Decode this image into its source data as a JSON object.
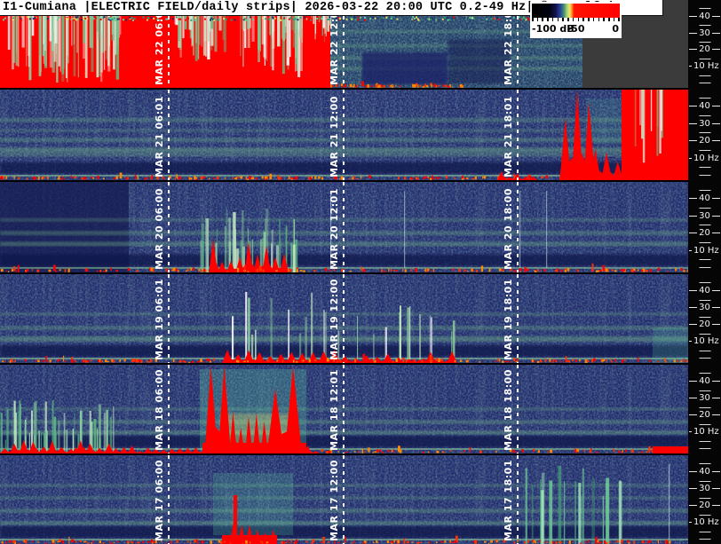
{
  "header": {
    "title": "I1-Cumiana |ELECTRIC FIELD/daily strips| 2026-03-22 20:00 UTC 0.2-49 Hz| ©www.vlf.it"
  },
  "colorbar": {
    "labels": [
      "-100 dB",
      "-50",
      "0"
    ],
    "unit": "dB",
    "min_db": -100,
    "max_db": 0
  },
  "freq_axis": {
    "labels": [
      "40",
      "30",
      "20",
      "10 Hz"
    ],
    "unit": "Hz",
    "range_hz": [
      0.2,
      49
    ]
  },
  "strips": [
    {
      "date": "MAR 22",
      "markers": [
        "MAR 22  06:00",
        "MAR 22  12:01",
        "MAR 22  18:00"
      ]
    },
    {
      "date": "MAR 21",
      "markers": [
        "MAR 21  06:01",
        "MAR 21  12:00",
        "MAR 21  18:01"
      ]
    },
    {
      "date": "MAR 20",
      "markers": [
        "MAR 20  06:00",
        "MAR 20  12:01",
        "MAR 20  18:00"
      ]
    },
    {
      "date": "MAR 19",
      "markers": [
        "MAR 19  06:01",
        "MAR 19  12:00",
        "MAR 19  18:01"
      ]
    },
    {
      "date": "MAR 18",
      "markers": [
        "MAR 18  06:00",
        "MAR 18  12:01",
        "MAR 18  18:00"
      ]
    },
    {
      "date": "MAR 17",
      "markers": [
        "MAR 17  06:00",
        "MAR 17  12:00",
        "MAR 17  18:01"
      ]
    }
  ],
  "palette": {
    "background": "#000000",
    "strip_base": "#232a6e",
    "speckle_green": "#59d999",
    "signal_red": "#ff0000",
    "no_data_gray": "#3b3b3b",
    "axis_bg": "#050505",
    "text_white": "#ffffff",
    "titlebar_bg": "#ffffff",
    "title_text": "#000000"
  },
  "chart_data": {
    "type": "heatmap",
    "title": "I1-Cumiana ELECTRIC FIELD daily strips",
    "generated_utc": "2026-03-22 20:00 UTC",
    "frequency_range_hz": [
      0.2,
      49
    ],
    "colorbar": {
      "unit": "dB",
      "min": -100,
      "max": 0,
      "tick_labels": [
        "-100 dB",
        "-50",
        "0"
      ]
    },
    "x_axis": {
      "span_hours": 24,
      "marker_lines": [
        "06:00",
        "12:00",
        "18:00"
      ]
    },
    "y_axis": {
      "tick_labels_hz": [
        40,
        30,
        20,
        10
      ]
    },
    "legend_position": "top-right",
    "strips": [
      {
        "date": "MAR 22",
        "marker_labels": [
          "06:00",
          "12:01",
          "18:00"
        ],
        "notable": "saturated broadband interference ~00:00-11:30; no data after 20:00 (gray)"
      },
      {
        "date": "MAR 21",
        "marker_labels": [
          "06:01",
          "12:00",
          "18:01"
        ],
        "notable": "strong saturated signal ~20:00-24:00"
      },
      {
        "date": "MAR 20",
        "marker_labels": [
          "06:00",
          "12:01",
          "18:00"
        ],
        "notable": "burst activity ~07:00-10:00; darker background before 04:30"
      },
      {
        "date": "MAR 19",
        "marker_labels": [
          "06:01",
          "12:00",
          "18:01"
        ],
        "notable": "enhanced low-frequency activity ~08:00-16:00"
      },
      {
        "date": "MAR 18",
        "marker_labels": [
          "06:00",
          "12:01",
          "18:00"
        ],
        "notable": "strong saturated event ~07:30-10:30; interference 00:00-04:00"
      },
      {
        "date": "MAR 17",
        "marker_labels": [
          "06:00",
          "12:00",
          "18:01"
        ],
        "notable": "burst ~08:00-10:00; enhanced vertical banding ~18:00-21:30"
      }
    ]
  }
}
